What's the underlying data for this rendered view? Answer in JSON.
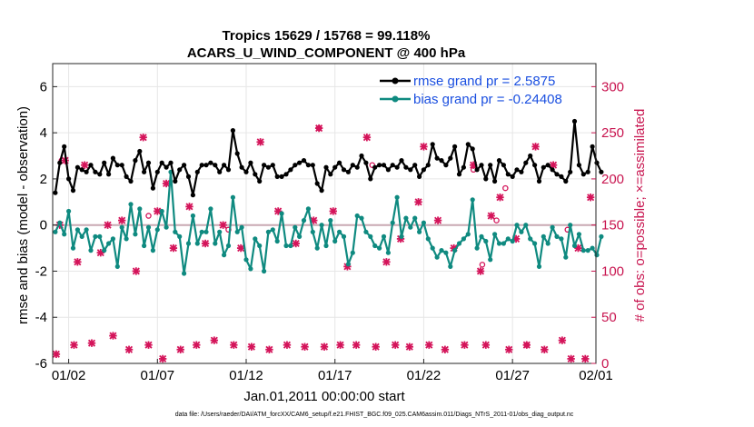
{
  "colors": {
    "rmse": "#000000",
    "bias": "#0f8a80",
    "obs": "#d4145a",
    "right_axis": "#c8144f",
    "legend_text": "#1a4fe0",
    "zero_line": "#c9a9b3",
    "grid": "#e6e6e6"
  },
  "chart_data": {
    "type": "line",
    "title": "Tropics 15629 / 15768 = 99.118%",
    "subtitle": "ACARS_U_WIND_COMPONENT @ 400 hPa",
    "xlabel": "Jan.01,2011 00:00:00 start",
    "ylabel": "rmse and bias (model - observation)",
    "ylabel_right": "# of obs: o=possible; ×=assimilated",
    "footer": "data file: /Users/raeder/DAI/ATM_forcXX/CAM6_setup/f.e21.FHIST_BGC.f09_025.CAM6assim.011/Diags_NTrS_2011-01/obs_diag_output.nc",
    "xlim": [
      0.6,
      31.2
    ],
    "ylim": [
      -6,
      7
    ],
    "ylim_right": [
      0,
      325
    ],
    "x_ticks": [
      1.5,
      6.5,
      11.5,
      16.5,
      21.5,
      26.5,
      31.5
    ],
    "x_tick_labels": [
      "01/02",
      "01/07",
      "01/12",
      "01/17",
      "01/22",
      "01/27",
      "02/01"
    ],
    "y_ticks": [
      -6,
      -4,
      -2,
      0,
      2,
      4,
      6
    ],
    "y_tick_labels": [
      "-6",
      "-4",
      "-2",
      "0",
      "2",
      "4",
      "6"
    ],
    "y_ticks_right": [
      0,
      50,
      100,
      150,
      200,
      250,
      300
    ],
    "y_tick_labels_right": [
      "0",
      "50",
      "100",
      "150",
      "200",
      "250",
      "300"
    ],
    "legend": [
      {
        "name": "rmse grand pr = 2.5875",
        "series": "rmse"
      },
      {
        "name": "bias grand pr = -0.24408",
        "series": "bias"
      }
    ],
    "x_start": 0.75,
    "x_step": 0.25,
    "series": [
      {
        "name": "rmse",
        "values": [
          1.4,
          2.7,
          3.4,
          2.0,
          1.5,
          2.5,
          2.4,
          2.3,
          2.6,
          2.3,
          2.2,
          2.7,
          2.2,
          2.9,
          2.6,
          2.6,
          2.1,
          1.9,
          2.8,
          3.2,
          2.3,
          2.7,
          1.6,
          2.3,
          2.7,
          2.5,
          2.7,
          1.9,
          2.4,
          2.6,
          2.1,
          1.3,
          2.3,
          2.6,
          2.6,
          2.7,
          2.6,
          2.3,
          2.6,
          2.4,
          4.1,
          3.1,
          2.5,
          2.3,
          2.7,
          2.2,
          1.9,
          2.6,
          2.5,
          2.6,
          2.1,
          2.1,
          2.2,
          2.4,
          2.6,
          2.7,
          2.8,
          2.6,
          2.6,
          1.8,
          1.5,
          2.5,
          2.2,
          2.5,
          2.7,
          2.4,
          2.3,
          2.6,
          2.5,
          3.0,
          2.7,
          2.0,
          2.5,
          2.6,
          2.6,
          2.4,
          2.6,
          2.5,
          2.8,
          2.5,
          2.4,
          2.6,
          2.1,
          2.4,
          2.6,
          3.5,
          2.9,
          2.8,
          2.6,
          2.9,
          3.4,
          2.2,
          2.5,
          3.5,
          3.3,
          2.4,
          2.6,
          2.0,
          2.6,
          1.9,
          2.8,
          2.6,
          2.2,
          2.1,
          2.4,
          2.3,
          2.7,
          3.0,
          2.6,
          1.9,
          2.5,
          2.6,
          2.4,
          2.2,
          2.1,
          1.9,
          2.3,
          4.5,
          2.6,
          2.2,
          2.3,
          3.4,
          2.7,
          2.3
        ]
      },
      {
        "name": "bias",
        "values": [
          -0.3,
          0.1,
          -0.4,
          0.6,
          -1.0,
          -0.2,
          -0.5,
          -0.2,
          -1.1,
          -0.5,
          -0.5,
          -1.1,
          -0.8,
          -0.6,
          -1.8,
          -0.1,
          -0.6,
          0.9,
          -0.4,
          0.7,
          -0.9,
          -0.1,
          -1.1,
          -0.2,
          0.6,
          -0.1,
          2.3,
          -0.3,
          -0.5,
          -2.1,
          -0.8,
          0.4,
          -0.8,
          -0.3,
          -0.3,
          0.7,
          -0.8,
          -0.3,
          -1.3,
          -0.9,
          1.2,
          -0.3,
          -0.1,
          -1.5,
          -1.9,
          -0.6,
          -0.9,
          -2.0,
          -0.3,
          -0.2,
          -0.7,
          0.5,
          -0.9,
          -0.9,
          -0.1,
          -0.5,
          0.2,
          0.7,
          -0.3,
          -1.0,
          0.0,
          -0.9,
          0.2,
          -0.7,
          -0.3,
          -0.5,
          -1.7,
          -1.2,
          0.4,
          0.3,
          -0.3,
          -0.5,
          -0.9,
          -1.0,
          -0.5,
          -1.2,
          0.1,
          1.2,
          -0.5,
          0.3,
          -0.1,
          0.3,
          -0.3,
          0.1,
          -0.6,
          -1.0,
          -1.4,
          -1.1,
          -1.2,
          -1.8,
          -1.1,
          -0.8,
          -0.6,
          -0.4,
          1.1,
          -1.0,
          -0.5,
          -0.7,
          -1.5,
          -0.4,
          -0.8,
          -0.8,
          -0.6,
          -0.7,
          0.0,
          -0.3,
          0.0,
          -0.6,
          -0.8,
          -1.8,
          -0.5,
          -0.8,
          -0.1,
          -0.5,
          -0.6,
          -1.4,
          0.0,
          -0.9,
          -0.4,
          -1.1,
          -1.1,
          -1.0,
          -1.3,
          -0.5
        ]
      }
    ],
    "obs_assimilated": [
      {
        "x": 0.8,
        "n": 10
      },
      {
        "x": 1.0,
        "n": 150
      },
      {
        "x": 1.3,
        "n": 220
      },
      {
        "x": 1.8,
        "n": 20
      },
      {
        "x": 2.0,
        "n": 110
      },
      {
        "x": 2.4,
        "n": 215
      },
      {
        "x": 2.8,
        "n": 22
      },
      {
        "x": 3.3,
        "n": 120
      },
      {
        "x": 3.7,
        "n": 150
      },
      {
        "x": 4.0,
        "n": 30
      },
      {
        "x": 4.5,
        "n": 155
      },
      {
        "x": 4.9,
        "n": 15
      },
      {
        "x": 5.3,
        "n": 100
      },
      {
        "x": 5.7,
        "n": 245
      },
      {
        "x": 6.0,
        "n": 20
      },
      {
        "x": 6.5,
        "n": 165
      },
      {
        "x": 6.8,
        "n": 5
      },
      {
        "x": 7.0,
        "n": 195
      },
      {
        "x": 7.4,
        "n": 125
      },
      {
        "x": 7.8,
        "n": 15
      },
      {
        "x": 8.3,
        "n": 170
      },
      {
        "x": 8.7,
        "n": 20
      },
      {
        "x": 9.2,
        "n": 130
      },
      {
        "x": 9.7,
        "n": 25
      },
      {
        "x": 10.2,
        "n": 150
      },
      {
        "x": 10.8,
        "n": 20
      },
      {
        "x": 11.2,
        "n": 125
      },
      {
        "x": 11.8,
        "n": 18
      },
      {
        "x": 12.3,
        "n": 240
      },
      {
        "x": 12.8,
        "n": 15
      },
      {
        "x": 13.3,
        "n": 165
      },
      {
        "x": 13.8,
        "n": 20
      },
      {
        "x": 14.3,
        "n": 130
      },
      {
        "x": 14.8,
        "n": 18
      },
      {
        "x": 15.3,
        "n": 155
      },
      {
        "x": 15.6,
        "n": 255
      },
      {
        "x": 15.9,
        "n": 18
      },
      {
        "x": 16.4,
        "n": 165
      },
      {
        "x": 16.8,
        "n": 20
      },
      {
        "x": 17.2,
        "n": 105
      },
      {
        "x": 17.7,
        "n": 20
      },
      {
        "x": 18.3,
        "n": 245
      },
      {
        "x": 18.8,
        "n": 18
      },
      {
        "x": 19.4,
        "n": 110
      },
      {
        "x": 19.9,
        "n": 20
      },
      {
        "x": 20.2,
        "n": 135
      },
      {
        "x": 20.7,
        "n": 18
      },
      {
        "x": 21.2,
        "n": 175
      },
      {
        "x": 21.5,
        "n": 235
      },
      {
        "x": 21.8,
        "n": 20
      },
      {
        "x": 22.3,
        "n": 155
      },
      {
        "x": 22.7,
        "n": 15
      },
      {
        "x": 23.2,
        "n": 125
      },
      {
        "x": 23.8,
        "n": 20
      },
      {
        "x": 24.3,
        "n": 215
      },
      {
        "x": 24.7,
        "n": 100
      },
      {
        "x": 25.0,
        "n": 20
      },
      {
        "x": 25.3,
        "n": 160
      },
      {
        "x": 25.8,
        "n": 180
      },
      {
        "x": 26.3,
        "n": 15
      },
      {
        "x": 26.7,
        "n": 135
      },
      {
        "x": 27.3,
        "n": 20
      },
      {
        "x": 27.8,
        "n": 235
      },
      {
        "x": 28.3,
        "n": 15
      },
      {
        "x": 28.8,
        "n": 215
      },
      {
        "x": 29.3,
        "n": 25
      },
      {
        "x": 29.8,
        "n": 5
      },
      {
        "x": 30.2,
        "n": 125
      },
      {
        "x": 30.6,
        "n": 5
      },
      {
        "x": 30.9,
        "n": 180
      }
    ],
    "obs_possible": [
      {
        "x": 1.1,
        "n": 220
      },
      {
        "x": 6.0,
        "n": 160
      },
      {
        "x": 10.5,
        "n": 145
      },
      {
        "x": 15.6,
        "n": 255
      },
      {
        "x": 18.6,
        "n": 215
      },
      {
        "x": 24.3,
        "n": 210
      },
      {
        "x": 24.8,
        "n": 107
      },
      {
        "x": 25.6,
        "n": 155
      },
      {
        "x": 26.1,
        "n": 190
      },
      {
        "x": 27.3,
        "n": 20
      },
      {
        "x": 29.6,
        "n": 145
      }
    ]
  }
}
